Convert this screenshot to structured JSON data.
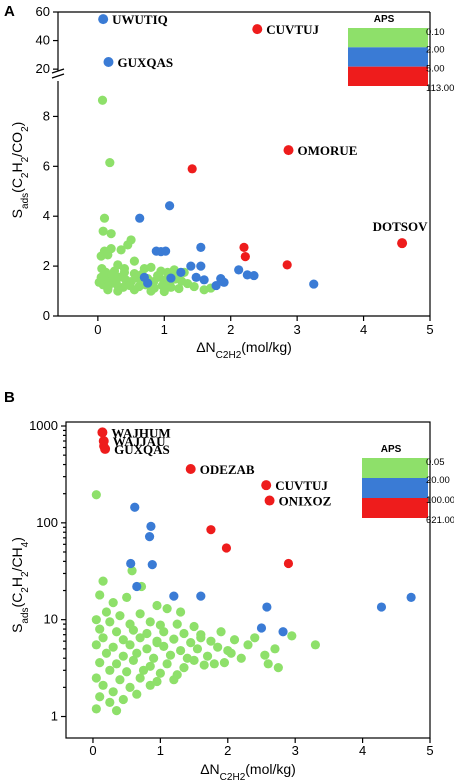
{
  "chart_data": [
    {
      "panel": "A",
      "type": "scatter",
      "xlabel": "ΔN",
      "xlabel_sub": "C2H2",
      "xlabel_unit": "(mol/kg)",
      "ylabel_main": "S",
      "ylabel_sub": "ads",
      "ylabel_paren": "(C2H2/CO2)",
      "xlim": [
        -0.6,
        5
      ],
      "xticks": [
        0,
        1,
        2,
        3,
        4,
        5
      ],
      "xtick_labels": [
        "0",
        "1",
        "2",
        "3",
        "4",
        "5"
      ],
      "y_lower_lim": [
        0,
        9.3
      ],
      "y_lower_ticks": [
        0,
        2,
        4,
        6,
        8
      ],
      "y_lower_tick_labels": [
        "0",
        "2",
        "4",
        "6",
        "8"
      ],
      "y_upper_lim": [
        18,
        60
      ],
      "y_upper_ticks": [
        20,
        40,
        60
      ],
      "y_upper_tick_labels": [
        "20",
        "40",
        "60"
      ],
      "axis_break": true,
      "legend": {
        "title": "APS",
        "placement": "top-right",
        "labels": [
          "0.10",
          "2.00",
          "5.00",
          "113.00"
        ],
        "colors": [
          "#8ee06a",
          "#3a7bd5",
          "#ee1c1c"
        ]
      },
      "colors": {
        "green": "#8ee06a",
        "blue": "#3a7bd5",
        "red": "#ee1c1c"
      },
      "annotations": [
        {
          "text": "UWUTIQ",
          "x": 0.08,
          "y": 55,
          "color": "blue"
        },
        {
          "text": "CUVTUJ",
          "x": 2.4,
          "y": 48,
          "color": "red"
        },
        {
          "text": "GUXQAS",
          "x": 0.16,
          "y": 25,
          "color": "blue"
        },
        {
          "text": "OMORUE",
          "x": 2.87,
          "y": 6.65,
          "color": "red"
        },
        {
          "text": "DOTSOV",
          "x": 4.58,
          "y": 2.92,
          "color": "red"
        }
      ],
      "red_points": [
        [
          1.42,
          5.9
        ],
        [
          2.2,
          2.75
        ],
        [
          2.22,
          2.38
        ],
        [
          2.85,
          2.05
        ]
      ],
      "blue_points": [
        [
          0.63,
          3.92
        ],
        [
          1.08,
          4.42
        ],
        [
          0.88,
          2.6
        ],
        [
          0.95,
          2.58
        ],
        [
          1.02,
          2.6
        ],
        [
          1.55,
          2.75
        ],
        [
          1.4,
          2.0
        ],
        [
          1.55,
          2.0
        ],
        [
          1.25,
          1.75
        ],
        [
          1.48,
          1.55
        ],
        [
          1.6,
          1.45
        ],
        [
          1.85,
          1.5
        ],
        [
          1.78,
          1.22
        ],
        [
          1.9,
          1.35
        ],
        [
          2.12,
          1.85
        ],
        [
          2.25,
          1.65
        ],
        [
          2.35,
          1.62
        ],
        [
          3.25,
          1.28
        ],
        [
          0.7,
          1.55
        ],
        [
          0.75,
          1.32
        ],
        [
          1.1,
          1.52
        ]
      ],
      "green_points": [
        [
          0.07,
          8.65
        ],
        [
          0.18,
          6.15
        ],
        [
          0.1,
          3.92
        ],
        [
          0.08,
          3.4
        ],
        [
          0.2,
          3.3
        ],
        [
          0.5,
          3.05
        ],
        [
          0.45,
          2.85
        ],
        [
          0.1,
          2.6
        ],
        [
          0.2,
          2.7
        ],
        [
          0.35,
          2.65
        ],
        [
          0.05,
          2.4
        ],
        [
          0.15,
          2.45
        ],
        [
          0.55,
          2.2
        ],
        [
          0.3,
          2.05
        ],
        [
          0.06,
          1.9
        ],
        [
          0.12,
          1.75
        ],
        [
          0.25,
          1.8
        ],
        [
          0.4,
          1.75
        ],
        [
          0.55,
          1.7
        ],
        [
          0.7,
          1.9
        ],
        [
          0.8,
          1.95
        ],
        [
          0.95,
          1.8
        ],
        [
          1.05,
          1.75
        ],
        [
          1.2,
          1.65
        ],
        [
          1.3,
          1.75
        ],
        [
          0.05,
          1.55
        ],
        [
          0.1,
          1.45
        ],
        [
          0.18,
          1.5
        ],
        [
          0.25,
          1.4
        ],
        [
          0.32,
          1.55
        ],
        [
          0.42,
          1.45
        ],
        [
          0.5,
          1.38
        ],
        [
          0.58,
          1.52
        ],
        [
          0.66,
          1.42
        ],
        [
          0.75,
          1.5
        ],
        [
          0.84,
          1.38
        ],
        [
          0.92,
          1.55
        ],
        [
          1.0,
          1.45
        ],
        [
          1.08,
          1.35
        ],
        [
          1.16,
          1.48
        ],
        [
          1.26,
          1.4
        ],
        [
          1.35,
          1.3
        ],
        [
          0.08,
          1.25
        ],
        [
          0.16,
          1.2
        ],
        [
          0.28,
          1.28
        ],
        [
          0.38,
          1.15
        ],
        [
          0.48,
          1.22
        ],
        [
          0.62,
          1.18
        ],
        [
          0.72,
          1.25
        ],
        [
          0.85,
          1.12
        ],
        [
          0.97,
          1.22
        ],
        [
          1.1,
          1.15
        ],
        [
          1.22,
          1.1
        ],
        [
          1.45,
          1.18
        ],
        [
          0.15,
          1.05
        ],
        [
          0.3,
          1.0
        ],
        [
          0.55,
          1.05
        ],
        [
          0.8,
          1.0
        ],
        [
          1.0,
          0.98
        ],
        [
          1.6,
          1.05
        ],
        [
          1.7,
          1.12
        ],
        [
          0.4,
          1.9
        ],
        [
          0.65,
          1.65
        ],
        [
          0.9,
          1.62
        ],
        [
          1.15,
          1.85
        ],
        [
          0.22,
          1.62
        ],
        [
          0.02,
          1.35
        ]
      ]
    },
    {
      "panel": "B",
      "type": "scatter",
      "xlabel": "ΔN",
      "xlabel_sub": "C2H2",
      "xlabel_unit": "(mol/kg)",
      "ylabel_main": "S",
      "ylabel_sub": "ads",
      "ylabel_paren": "(C2H2/CH4)",
      "yscale": "log",
      "xlim": [
        -0.4,
        5
      ],
      "xticks": [
        0,
        1,
        2,
        3,
        4,
        5
      ],
      "xtick_labels": [
        "0",
        "1",
        "2",
        "3",
        "4",
        "5"
      ],
      "ylim": [
        0.6,
        1100
      ],
      "yticks": [
        1,
        10,
        100,
        1000
      ],
      "ytick_labels": [
        "1",
        "10",
        "100",
        "1000"
      ],
      "legend": {
        "title": "APS",
        "placement": "top-right",
        "labels": [
          "0.05",
          "20.00",
          "100.00",
          "621.00"
        ],
        "colors": [
          "#8ee06a",
          "#3a7bd5",
          "#ee1c1c"
        ]
      },
      "colors": {
        "green": "#8ee06a",
        "blue": "#3a7bd5",
        "red": "#ee1c1c"
      },
      "annotations": [
        {
          "text": "WAJHUM",
          "x": 0.14,
          "y": 860,
          "color": "red"
        },
        {
          "text": "WAJJAU",
          "x": 0.16,
          "y": 700,
          "color": "red"
        },
        {
          "text": "GUXQAS",
          "x": 0.18,
          "y": 580,
          "color": "red"
        },
        {
          "text": "ODEZAB",
          "x": 1.45,
          "y": 360,
          "color": "red"
        },
        {
          "text": "CUVTUJ",
          "x": 2.57,
          "y": 245,
          "color": "red"
        },
        {
          "text": "ONIXOZ",
          "x": 2.62,
          "y": 170,
          "color": "red"
        }
      ],
      "red_points": [
        [
          1.75,
          85
        ],
        [
          1.98,
          55
        ],
        [
          2.9,
          38
        ],
        [
          0.16,
          620
        ]
      ],
      "blue_points": [
        [
          0.62,
          145
        ],
        [
          0.86,
          92
        ],
        [
          0.84,
          72
        ],
        [
          0.56,
          38
        ],
        [
          0.88,
          37
        ],
        [
          0.65,
          22
        ],
        [
          1.2,
          17.5
        ],
        [
          1.6,
          17.5
        ],
        [
          2.58,
          13.5
        ],
        [
          2.5,
          8.2
        ],
        [
          2.82,
          7.5
        ],
        [
          4.28,
          13.5
        ],
        [
          4.72,
          17
        ]
      ],
      "green_points": [
        [
          0.05,
          195
        ],
        [
          0.58,
          32
        ],
        [
          0.15,
          25
        ],
        [
          0.72,
          22
        ],
        [
          0.1,
          18
        ],
        [
          0.5,
          17
        ],
        [
          0.3,
          15
        ],
        [
          0.95,
          14
        ],
        [
          1.1,
          13
        ],
        [
          0.2,
          12
        ],
        [
          0.4,
          11
        ],
        [
          0.7,
          11.5
        ],
        [
          1.3,
          12
        ],
        [
          0.05,
          10
        ],
        [
          0.25,
          9.5
        ],
        [
          0.55,
          9
        ],
        [
          0.85,
          9.5
        ],
        [
          1.0,
          8.8
        ],
        [
          1.25,
          9
        ],
        [
          1.5,
          8.5
        ],
        [
          0.1,
          8
        ],
        [
          0.35,
          7.5
        ],
        [
          0.6,
          7.8
        ],
        [
          0.8,
          7.2
        ],
        [
          1.05,
          7.5
        ],
        [
          1.35,
          7.2
        ],
        [
          1.6,
          7
        ],
        [
          1.9,
          7.5
        ],
        [
          0.15,
          6.5
        ],
        [
          0.45,
          6.2
        ],
        [
          0.7,
          6.5
        ],
        [
          0.95,
          6
        ],
        [
          1.2,
          6.3
        ],
        [
          1.45,
          5.8
        ],
        [
          1.75,
          6
        ],
        [
          2.1,
          6.2
        ],
        [
          2.4,
          6.5
        ],
        [
          0.05,
          5.5
        ],
        [
          0.3,
          5.2
        ],
        [
          0.55,
          5.5
        ],
        [
          0.8,
          5
        ],
        [
          1.05,
          5.3
        ],
        [
          1.3,
          4.8
        ],
        [
          1.55,
          5
        ],
        [
          1.85,
          5.2
        ],
        [
          2.0,
          4.8
        ],
        [
          2.3,
          5.5
        ],
        [
          2.7,
          5
        ],
        [
          2.95,
          6.8
        ],
        [
          3.3,
          5.5
        ],
        [
          0.2,
          4.5
        ],
        [
          0.45,
          4.2
        ],
        [
          0.65,
          4.5
        ],
        [
          0.9,
          4
        ],
        [
          1.15,
          4.3
        ],
        [
          1.4,
          4
        ],
        [
          1.7,
          4.2
        ],
        [
          2.2,
          4
        ],
        [
          2.55,
          4.3
        ],
        [
          0.1,
          3.6
        ],
        [
          0.35,
          3.5
        ],
        [
          0.6,
          3.8
        ],
        [
          0.85,
          3.3
        ],
        [
          1.1,
          3.5
        ],
        [
          1.35,
          3.2
        ],
        [
          1.65,
          3.4
        ],
        [
          1.95,
          3.6
        ],
        [
          2.6,
          3.5
        ],
        [
          2.75,
          3.2
        ],
        [
          0.25,
          3.0
        ],
        [
          0.5,
          2.9
        ],
        [
          0.75,
          3.0
        ],
        [
          1.0,
          2.8
        ],
        [
          1.25,
          2.7
        ],
        [
          0.05,
          2.5
        ],
        [
          0.4,
          2.4
        ],
        [
          0.7,
          2.5
        ],
        [
          0.95,
          2.3
        ],
        [
          1.2,
          2.4
        ],
        [
          0.15,
          2.1
        ],
        [
          0.55,
          2.0
        ],
        [
          0.85,
          2.1
        ],
        [
          0.3,
          1.8
        ],
        [
          0.65,
          1.7
        ],
        [
          0.1,
          1.6
        ],
        [
          0.45,
          1.5
        ],
        [
          0.25,
          1.4
        ],
        [
          0.05,
          1.2
        ],
        [
          0.35,
          1.15
        ],
        [
          1.5,
          3.8
        ],
        [
          1.8,
          3.5
        ],
        [
          2.05,
          4.5
        ],
        [
          0.95,
          5.8
        ],
        [
          1.6,
          6.5
        ]
      ]
    }
  ]
}
